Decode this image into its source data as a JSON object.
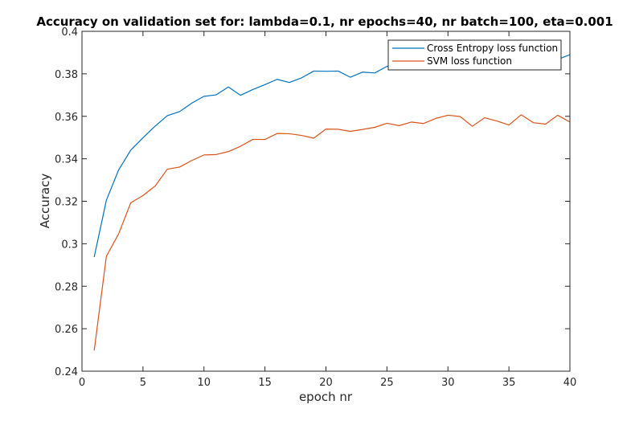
{
  "chart_data": {
    "type": "line",
    "title": "Accuracy on validation set for: lambda=0.1, nr epochs=40, nr batch=100, eta=0.001",
    "xlabel": "epoch nr",
    "ylabel": "Accuracy",
    "xlim": [
      0,
      40
    ],
    "ylim": [
      0.24,
      0.4
    ],
    "xticks": [
      0,
      5,
      10,
      15,
      20,
      25,
      30,
      35,
      40
    ],
    "yticks": [
      0.24,
      0.26,
      0.28,
      0.3,
      0.32,
      0.34,
      0.36,
      0.38,
      0.4
    ],
    "xtick_labels": [
      "0",
      "5",
      "10",
      "15",
      "20",
      "25",
      "30",
      "35",
      "40"
    ],
    "ytick_labels": [
      "0.24",
      "0.26",
      "0.28",
      "0.3",
      "0.32",
      "0.34",
      "0.36",
      "0.38",
      "0.4"
    ],
    "grid": false,
    "legend_position": "top-right",
    "x": [
      1,
      2,
      3,
      4,
      5,
      6,
      7,
      8,
      9,
      10,
      11,
      12,
      13,
      14,
      15,
      16,
      17,
      18,
      19,
      20,
      21,
      22,
      23,
      24,
      25,
      26,
      27,
      28,
      29,
      30,
      31,
      32,
      33,
      34,
      35,
      36,
      37,
      38,
      39,
      40
    ],
    "series": [
      {
        "name": "Cross Entropy loss function",
        "color": "#0072BD",
        "values": [
          0.2937,
          0.3205,
          0.3347,
          0.3441,
          0.3499,
          0.3554,
          0.3603,
          0.3622,
          0.3662,
          0.3694,
          0.3701,
          0.3738,
          0.3699,
          0.3726,
          0.3749,
          0.3774,
          0.3759,
          0.3781,
          0.3813,
          0.3812,
          0.3813,
          0.3784,
          0.3808,
          0.3804,
          0.3835,
          0.3838,
          0.3839,
          0.3826,
          0.3845,
          0.3846,
          0.3849,
          0.3851,
          0.3852,
          0.3858,
          0.3862,
          0.3866,
          0.3868,
          0.3863,
          0.3868,
          0.389
        ]
      },
      {
        "name": "SVM loss function",
        "color": "#D95319",
        "values": [
          0.2497,
          0.2941,
          0.3046,
          0.3193,
          0.3227,
          0.3272,
          0.3351,
          0.3361,
          0.3392,
          0.3418,
          0.342,
          0.3434,
          0.3459,
          0.3491,
          0.3491,
          0.3519,
          0.3518,
          0.351,
          0.3497,
          0.354,
          0.3539,
          0.3529,
          0.3538,
          0.3548,
          0.3567,
          0.3556,
          0.3573,
          0.3566,
          0.359,
          0.3605,
          0.3599,
          0.3553,
          0.3593,
          0.3578,
          0.3559,
          0.3607,
          0.357,
          0.3563,
          0.3605,
          0.3573
        ]
      }
    ]
  }
}
